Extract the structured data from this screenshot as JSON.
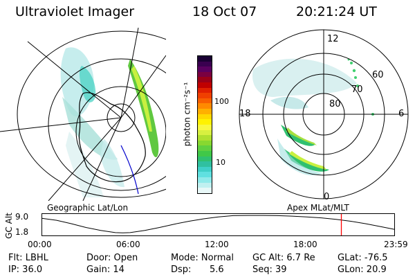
{
  "header": {
    "instrument": "Ultraviolet Imager",
    "date": "18 Oct 07",
    "time": "20:21:24 UT"
  },
  "geo_map": {
    "label": "Geographic Lat/Lon"
  },
  "colorbar": {
    "unit_label": "photon cm⁻²s⁻¹",
    "ticks": [
      "100",
      "10"
    ],
    "colors": [
      "#1a0033",
      "#3a0050",
      "#5a0060",
      "#7a0040",
      "#9a0018",
      "#c00000",
      "#e02000",
      "#f04000",
      "#f86000",
      "#ff8a00",
      "#ffb000",
      "#ffd800",
      "#fff200",
      "#f8f840",
      "#d8f040",
      "#b0e030",
      "#88d830",
      "#60d040",
      "#40c848",
      "#30c070",
      "#30c0a0",
      "#40d0c8",
      "#60e0e0",
      "#90eaea",
      "#c0f0f0",
      "#e8f8f8"
    ]
  },
  "polar_map": {
    "label": "Apex MLat/MLT",
    "mlt_labels": {
      "top": "12",
      "left": "18",
      "right": "6",
      "bottom": "0"
    },
    "lat_labels": [
      "60",
      "70",
      "80"
    ]
  },
  "timeline": {
    "axis_title": "GC Alt",
    "y_ticks": [
      "9.0",
      "1.8"
    ],
    "x_ticks": [
      "00:00",
      "06:00",
      "12:00",
      "18:00",
      "23:59"
    ],
    "curve_points": [
      [
        0,
        7.8
      ],
      [
        1,
        7.0
      ],
      [
        2,
        5.6
      ],
      [
        3,
        4.0
      ],
      [
        4,
        2.8
      ],
      [
        5,
        1.9
      ],
      [
        5.5,
        1.8
      ],
      [
        6,
        1.9
      ],
      [
        7,
        2.8
      ],
      [
        8,
        4.0
      ],
      [
        9,
        5.4
      ],
      [
        10,
        6.6
      ],
      [
        11,
        7.6
      ],
      [
        12,
        8.4
      ],
      [
        13,
        8.9
      ],
      [
        14,
        9.0
      ],
      [
        15,
        9.0
      ],
      [
        16,
        8.9
      ],
      [
        17,
        8.7
      ],
      [
        18,
        8.4
      ],
      [
        19,
        8.0
      ],
      [
        20,
        7.4
      ],
      [
        21,
        6.6
      ],
      [
        22,
        5.6
      ],
      [
        23,
        4.4
      ],
      [
        23.98,
        3.2
      ]
    ],
    "marker_time": 20.36,
    "marker_color": "#ff0000"
  },
  "status": {
    "flt": "Flt: LBHL",
    "ip": "IP: 36.0",
    "door": "Door: Open",
    "gain": "Gain: 14",
    "mode": "Mode: Normal",
    "dsp_label": "Dsp:",
    "dsp_value": "5.6",
    "gc_alt": "GC Alt: 6.7 Re",
    "seq": "Seq: 39",
    "glat": "GLat: -76.5",
    "glon": "GLon: 20.9"
  }
}
